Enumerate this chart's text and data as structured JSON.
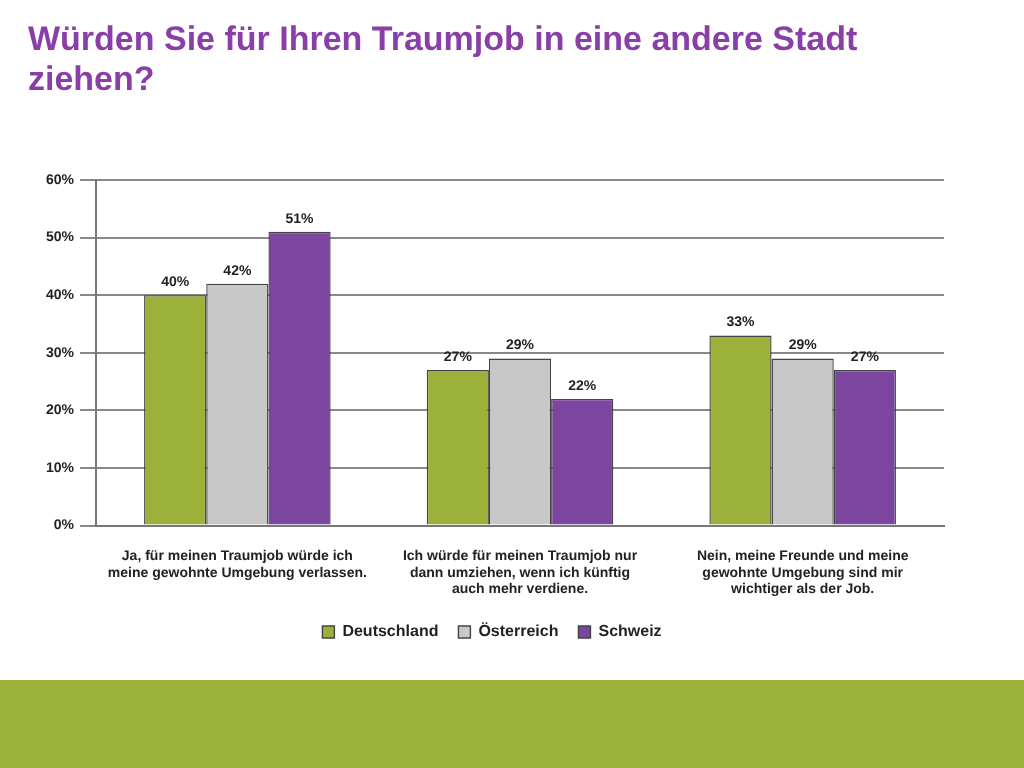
{
  "chart_data": {
    "type": "bar",
    "title": "Würden Sie für Ihren Traumjob in eine andere Stadt ziehen?",
    "categories": [
      "Ja, für meinen Traumjob würde ich meine gewohnte Umgebung verlassen.",
      "Ich würde für meinen Traumjob nur dann umziehen, wenn ich künftig auch mehr verdiene.",
      "Nein, meine Freunde und meine gewohnte Umgebung sind mir wichtiger als der Job."
    ],
    "series": [
      {
        "name": "Deutschland",
        "color": "#9bb13a",
        "values": [
          40,
          27,
          33
        ],
        "value_labels": [
          "40%",
          "27%",
          "33%"
        ]
      },
      {
        "name": "Österreich",
        "color": "#c8c8c8",
        "values": [
          42,
          29,
          29
        ],
        "value_labels": [
          "42%",
          "29%",
          "29%"
        ]
      },
      {
        "name": "Schweiz",
        "color": "#7b45a0",
        "values": [
          51,
          22,
          27
        ],
        "value_labels": [
          "51%",
          "22%",
          "27%"
        ]
      }
    ],
    "ylim": [
      0,
      60
    ],
    "yticks": [
      {
        "value": 0,
        "label": "0%"
      },
      {
        "value": 10,
        "label": "10%"
      },
      {
        "value": 20,
        "label": "20%"
      },
      {
        "value": 30,
        "label": "30%"
      },
      {
        "value": 40,
        "label": "40%"
      },
      {
        "value": 50,
        "label": "50%"
      },
      {
        "value": 60,
        "label": "60%"
      }
    ],
    "grid": "y",
    "legend": "bottom"
  }
}
